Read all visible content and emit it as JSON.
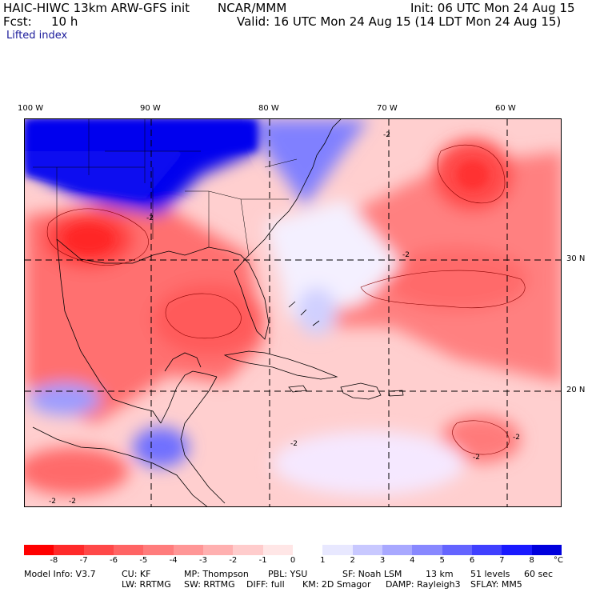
{
  "header": {
    "model": "HAIC-HIWC 13km ARW-GFS init",
    "org": "NCAR/MMM",
    "init": "Init: 06 UTC Mon 24 Aug 15",
    "fcst_label": "Fcst:",
    "fcst_value": "10 h",
    "valid": "Valid: 16 UTC Mon 24 Aug 15 (14 LDT Mon 24 Aug 15)"
  },
  "field_name": "Lifted index",
  "map": {
    "lon_labels": [
      "100 W",
      "90 W",
      "80 W",
      "70 W",
      "60 W"
    ],
    "lat_labels": [
      "30 N",
      "20 N"
    ],
    "contour_label": "-2",
    "colors": {
      "land_lines": "#000000",
      "grid": "#000000",
      "negative_strong": "#ff2222",
      "negative_weak": "#ffc8c8",
      "positive_strong": "#0000ee",
      "positive_weak": "#c8c8ff"
    }
  },
  "colorbar": {
    "ticks": [
      "-8",
      "-7",
      "-6",
      "-5",
      "-4",
      "-3",
      "-2",
      "-1",
      "0",
      "1",
      "2",
      "3",
      "4",
      "5",
      "6",
      "7",
      "8"
    ],
    "unit": "°C",
    "colors": [
      "#ff0000",
      "#ff2a2a",
      "#ff4848",
      "#ff6464",
      "#ff7c7c",
      "#ff9696",
      "#ffb0b0",
      "#ffcccc",
      "#ffe6e6",
      "#ffffff",
      "#e8e8ff",
      "#c8c8ff",
      "#a8a8ff",
      "#8888ff",
      "#6464ff",
      "#4040ff",
      "#1a1aff",
      "#0000dd"
    ]
  },
  "footer": {
    "line1": [
      "Model Info: V3.7",
      "CU: KF",
      "MP: Thompson",
      "PBL: YSU",
      "SF: Noah LSM",
      "13 km",
      "51 levels",
      "60 sec"
    ],
    "line2": [
      "LW: RRTMG",
      "SW: RRTMG",
      "DIFF: full",
      "KM: 2D Smagor",
      "DAMP: Rayleigh3",
      "SFLAY: MM5"
    ]
  }
}
